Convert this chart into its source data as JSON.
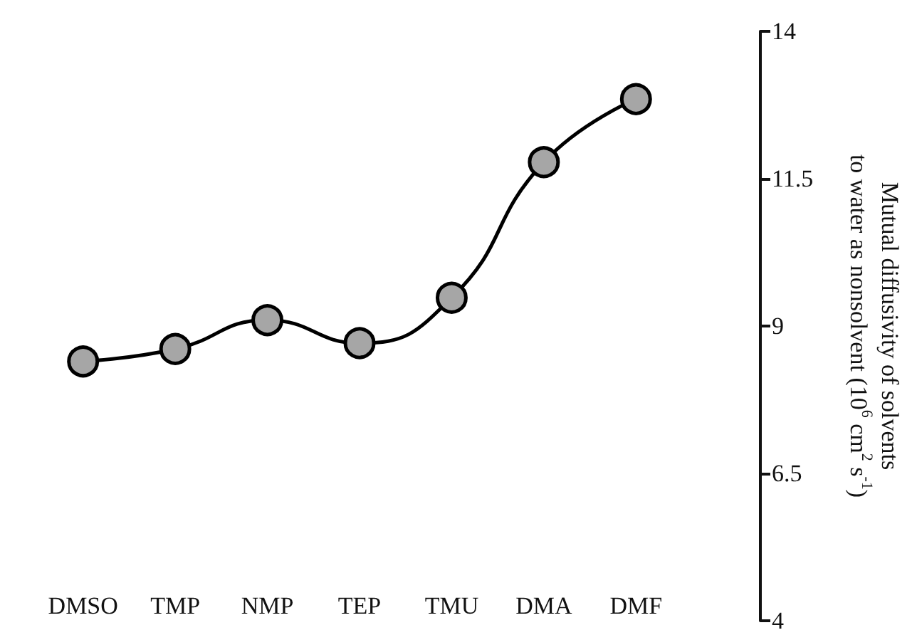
{
  "chart_data": {
    "type": "line",
    "categories": [
      "DMSO",
      "TMP",
      "NMP",
      "TEP",
      "TMU",
      "DMA",
      "DMF"
    ],
    "series": [
      {
        "color": "#000000",
        "values": [
          8.4,
          8.61,
          9.1,
          8.71,
          9.48,
          11.78,
          12.85
        ]
      }
    ],
    "ylabel": "Mutual diffusivity of solvents\nto water as nonsolvent (10$^{6}$ cm$^{2}$ s$^{-1}$)",
    "ylim": [
      4,
      14
    ],
    "yticks": [
      4,
      6.5,
      9,
      11.5,
      14
    ],
    "marker": "circle",
    "line_style": "solid"
  }
}
